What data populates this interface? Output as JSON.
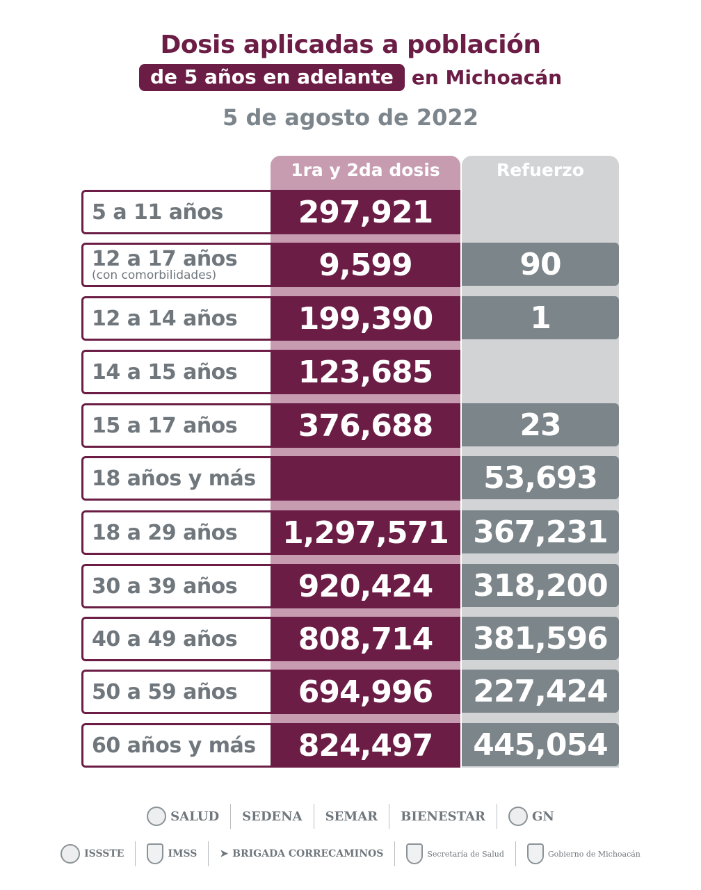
{
  "header": {
    "title_line1": "Dosis aplicadas a población",
    "title_pill": "de 5 años en adelante",
    "title_rest": "en Michoacán",
    "date": "5 de agosto de 2022"
  },
  "columns": {
    "col1": "1ra y 2da dosis",
    "col2": "Refuerzo"
  },
  "rows": [
    {
      "label": "5 a 11 años",
      "sub": "",
      "dose": "297,921",
      "booster": ""
    },
    {
      "label": "12 a 17 años",
      "sub": "(con comorbilidades)",
      "dose": "9,599",
      "booster": "90"
    },
    {
      "label": "12 a 14 años",
      "sub": "",
      "dose": "199,390",
      "booster": "1"
    },
    {
      "label": "14 a 15 años",
      "sub": "",
      "dose": "123,685",
      "booster": ""
    },
    {
      "label": "15 a 17 años",
      "sub": "",
      "dose": "376,688",
      "booster": "23"
    },
    {
      "label": "18 años y más",
      "sub": "",
      "dose": "",
      "booster": "53,693"
    },
    {
      "label": "18 a 29 años",
      "sub": "",
      "dose": "1,297,571",
      "booster": "367,231"
    },
    {
      "label": "30 a 39 años",
      "sub": "",
      "dose": "920,424",
      "booster": "318,200"
    },
    {
      "label": "40 a 49 años",
      "sub": "",
      "dose": "808,714",
      "booster": "381,596"
    },
    {
      "label": "50 a 59 años",
      "sub": "",
      "dose": "694,996",
      "booster": "227,424"
    },
    {
      "label": "60 años y más",
      "sub": "",
      "dose": "824,497",
      "booster": "445,054"
    }
  ],
  "logos_row1": [
    "SALUD",
    "SEDENA",
    "SEMAR",
    "BIENESTAR",
    "GN"
  ],
  "logos_row2": [
    "ISSSTE",
    "IMSS",
    "BRIGADA CORRECAMINOS",
    "Secretaría de Salud",
    "Gobierno de Michoacán"
  ]
}
